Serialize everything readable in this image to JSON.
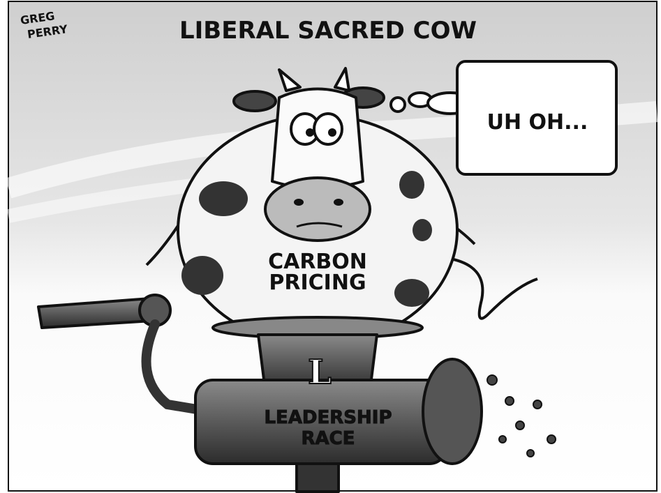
{
  "signature": [
    "GREG",
    "PERRY"
  ],
  "title": "LIBERAL SACRED COW",
  "thought_bubble": "UH OH...",
  "cow_label": [
    "CARBON",
    "PRICING"
  ],
  "grinder_logo": "L",
  "grinder_label": [
    "LEADERSHIP",
    "RACE"
  ]
}
